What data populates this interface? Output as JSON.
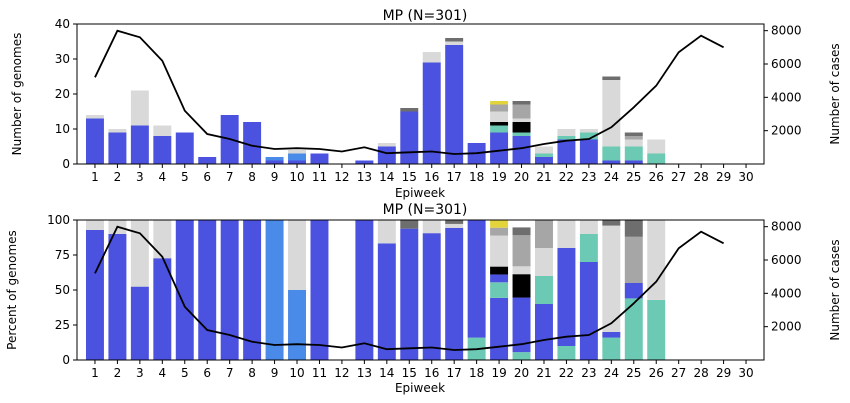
{
  "chart_data": [
    {
      "type": "bar",
      "stacked": true,
      "title": "MP (N=301)",
      "xlabel": "Epiweek",
      "ylabel": "Number of genomes",
      "ylabel_right": "Number of cases",
      "ylim": [
        0,
        40
      ],
      "y_ticks": [
        0,
        10,
        20,
        30,
        40
      ],
      "y2lim": [
        0,
        8400
      ],
      "y2_ticks": [
        2000,
        4000,
        6000,
        8000
      ],
      "categories": [
        "1",
        "2",
        "3",
        "4",
        "5",
        "6",
        "7",
        "8",
        "9",
        "10",
        "11",
        "12",
        "13",
        "14",
        "15",
        "16",
        "17",
        "18",
        "19",
        "20",
        "21",
        "22",
        "23",
        "24",
        "25",
        "26",
        "27",
        "28",
        "29",
        "30"
      ],
      "series": [
        {
          "color": "#4c52e0",
          "values": [
            13,
            9,
            11,
            8,
            9,
            2,
            14,
            12,
            1,
            1,
            3,
            0,
            1,
            5,
            15,
            29,
            34,
            6,
            9,
            8,
            2,
            7,
            7,
            1,
            1,
            0,
            0,
            0,
            0,
            0
          ]
        },
        {
          "color": "#4a8ae8",
          "values": [
            0,
            0,
            0,
            0,
            0,
            0,
            0,
            0,
            1,
            2,
            0,
            0,
            0,
            0,
            0,
            0,
            0,
            0,
            0,
            0,
            0,
            0,
            0,
            0,
            0,
            0,
            0,
            0,
            0,
            0
          ]
        },
        {
          "color": "#6cc9b4",
          "values": [
            0,
            0,
            0,
            0,
            0,
            0,
            0,
            0,
            0,
            0,
            0,
            0,
            0,
            0,
            0,
            0,
            0,
            0,
            2,
            1,
            1,
            1,
            2,
            4,
            4,
            3,
            0,
            0,
            0,
            0
          ]
        },
        {
          "color": "#000000",
          "values": [
            0,
            0,
            0,
            0,
            0,
            0,
            0,
            0,
            0,
            0,
            0,
            0,
            0,
            0,
            0,
            0,
            0,
            0,
            1,
            3,
            0,
            0,
            0,
            0,
            0,
            0,
            0,
            0,
            0,
            0
          ]
        },
        {
          "color": "#d9d9d9",
          "values": [
            1,
            1,
            10,
            3,
            0,
            0,
            0,
            0,
            0,
            1,
            0,
            0,
            0,
            1,
            0,
            3,
            1,
            0,
            3,
            1,
            2,
            2,
            1,
            19,
            2,
            4,
            0,
            0,
            0,
            0
          ]
        },
        {
          "color": "#a6a6a6",
          "values": [
            0,
            0,
            0,
            0,
            0,
            0,
            0,
            0,
            0,
            0,
            0,
            0,
            0,
            0,
            0,
            0,
            0,
            0,
            2,
            4,
            0,
            0,
            0,
            0,
            1,
            0,
            0,
            0,
            0,
            0
          ]
        },
        {
          "color": "#6e6e6e",
          "values": [
            0,
            0,
            0,
            0,
            0,
            0,
            0,
            0,
            0,
            0,
            0,
            0,
            0,
            0,
            1,
            0,
            1,
            0,
            0,
            1,
            0,
            0,
            0,
            1,
            1,
            0,
            0,
            0,
            0,
            0
          ]
        },
        {
          "color": "#e4d43c",
          "values": [
            0,
            0,
            0,
            0,
            0,
            0,
            0,
            0,
            0,
            0,
            0,
            0,
            0,
            0,
            0,
            0,
            0,
            0,
            1,
            0,
            0,
            0,
            0,
            0,
            0,
            0,
            0,
            0,
            0,
            0
          ]
        }
      ],
      "line": {
        "color": "#000000",
        "axis": "right",
        "values": [
          5200,
          8000,
          7600,
          6200,
          3200,
          1800,
          1500,
          1100,
          900,
          950,
          900,
          750,
          1000,
          650,
          700,
          750,
          600,
          650,
          800,
          950,
          1200,
          1400,
          1500,
          2200,
          3400,
          4700,
          6700,
          7700,
          7000,
          null
        ]
      }
    },
    {
      "type": "bar",
      "stacked": true,
      "title": "MP (N=301)",
      "xlabel": "Epiweek",
      "ylabel": "Percent of genomes",
      "ylabel_right": "Number of cases",
      "ylim": [
        0,
        100
      ],
      "y_ticks": [
        0,
        25,
        50,
        75,
        100
      ],
      "y2lim": [
        0,
        8400
      ],
      "y2_ticks": [
        2000,
        4000,
        6000,
        8000
      ],
      "categories": [
        "1",
        "2",
        "3",
        "4",
        "5",
        "6",
        "7",
        "8",
        "9",
        "10",
        "11",
        "12",
        "13",
        "14",
        "15",
        "16",
        "17",
        "18",
        "19",
        "20",
        "21",
        "22",
        "23",
        "24",
        "25",
        "26",
        "27",
        "28",
        "29",
        "30"
      ],
      "series": [
        {
          "color": "#4c52e0",
          "values": [
            92.9,
            90,
            52.4,
            72.7,
            100,
            100,
            100,
            100,
            0,
            0,
            100,
            0,
            100,
            83.3,
            93.8,
            90.6,
            94.4,
            0,
            44.4,
            0,
            40,
            0,
            70,
            0,
            0,
            0,
            0,
            0,
            0,
            0
          ]
        },
        {
          "color": "#4a8ae8",
          "values": [
            0,
            0,
            0,
            0,
            0,
            0,
            0,
            0,
            100,
            50,
            0,
            0,
            0,
            0,
            0,
            0,
            0,
            0,
            0,
            0,
            0,
            0,
            0,
            0,
            0,
            0,
            0,
            0,
            0,
            0
          ]
        },
        {
          "color": "#6cc9b4",
          "values": [
            0,
            0,
            0,
            0,
            0,
            0,
            0,
            0,
            0,
            0,
            0,
            0,
            0,
            0,
            0,
            0,
            0,
            16,
            11.1,
            5.6,
            20,
            10,
            20,
            16,
            44,
            42.9,
            0,
            0,
            0,
            0
          ]
        },
        {
          "color": "#4c52e0",
          "values": [
            0,
            0,
            0,
            0,
            0,
            0,
            0,
            0,
            0,
            0,
            0,
            0,
            0,
            0,
            0,
            0,
            0,
            84,
            5.6,
            39,
            0,
            70,
            0,
            4,
            11,
            0,
            0,
            0,
            0,
            0
          ]
        },
        {
          "color": "#000000",
          "values": [
            0,
            0,
            0,
            0,
            0,
            0,
            0,
            0,
            0,
            0,
            0,
            0,
            0,
            0,
            0,
            0,
            0,
            0,
            5.6,
            16.7,
            0,
            0,
            0,
            0,
            0,
            0,
            0,
            0,
            0,
            0
          ]
        },
        {
          "color": "#d9d9d9",
          "values": [
            7.1,
            10,
            47.6,
            27.3,
            0,
            0,
            0,
            0,
            0,
            50,
            0,
            0,
            0,
            16.7,
            0,
            9.4,
            2.8,
            0,
            22.2,
            5.6,
            20,
            20,
            10,
            76,
            0,
            57.1,
            0,
            0,
            0,
            0
          ]
        },
        {
          "color": "#a6a6a6",
          "values": [
            0,
            0,
            0,
            0,
            0,
            0,
            0,
            0,
            0,
            0,
            0,
            0,
            0,
            0,
            0,
            0,
            0,
            0,
            5.6,
            22.2,
            20,
            0,
            0,
            0,
            33,
            0,
            0,
            0,
            0,
            0
          ]
        },
        {
          "color": "#6e6e6e",
          "values": [
            0,
            0,
            0,
            0,
            0,
            0,
            0,
            0,
            0,
            0,
            0,
            0,
            0,
            0,
            6.2,
            0,
            2.8,
            0,
            0,
            5.6,
            0,
            0,
            0,
            4,
            12,
            0,
            0,
            0,
            0,
            0
          ]
        },
        {
          "color": "#e4d43c",
          "values": [
            0,
            0,
            0,
            0,
            0,
            0,
            0,
            0,
            0,
            0,
            0,
            0,
            0,
            0,
            0,
            0,
            0,
            0,
            5.6,
            0,
            0,
            0,
            0,
            0,
            0,
            0,
            0,
            0,
            0,
            0
          ]
        }
      ],
      "line": {
        "color": "#000000",
        "axis": "right",
        "values": [
          5200,
          8000,
          7600,
          6200,
          3200,
          1800,
          1500,
          1100,
          900,
          950,
          900,
          750,
          1000,
          650,
          700,
          750,
          600,
          650,
          800,
          950,
          1200,
          1400,
          1500,
          2200,
          3400,
          4700,
          6700,
          7700,
          7000,
          null
        ]
      }
    }
  ]
}
